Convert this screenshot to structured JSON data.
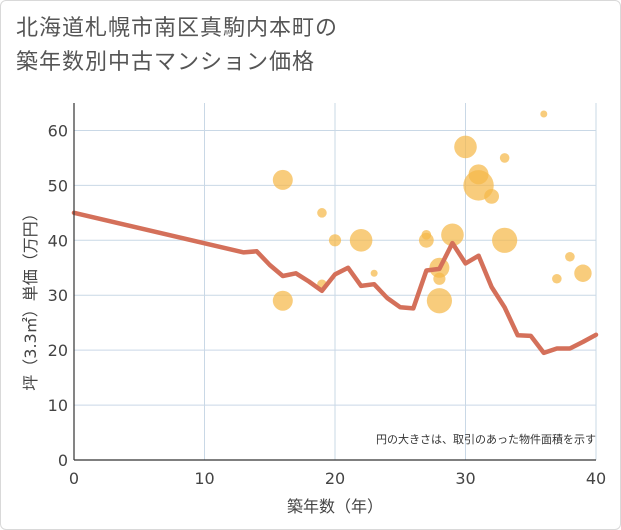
{
  "title_line1": "北海道札幌市南区真駒内本町の",
  "title_line2": "築年数別中古マンション価格",
  "colors": {
    "line": "#d4705a",
    "bubble": "#f5b84a",
    "grid": "#c9d8e6",
    "axis": "#333333"
  },
  "chart_data": {
    "type": "scatter",
    "xlabel": "築年数（年）",
    "ylabel": "坪（3.3㎡）単価（万円）",
    "xlim": [
      0,
      40
    ],
    "ylim": [
      0,
      65
    ],
    "x_ticks": [
      0,
      10,
      20,
      30,
      40
    ],
    "y_ticks": [
      0,
      10,
      20,
      30,
      40,
      50,
      60
    ],
    "grid": true,
    "note": "円の大きさは、取引のあった物件面積を示す",
    "line": {
      "x": [
        0,
        13,
        14,
        15,
        16,
        17,
        18,
        19,
        20,
        21,
        22,
        23,
        24,
        25,
        26,
        27,
        28,
        29,
        30,
        31,
        32,
        33,
        34,
        35,
        36,
        37,
        38,
        39,
        40
      ],
      "y": [
        45,
        37.8,
        38,
        35.5,
        33.5,
        34,
        32.5,
        30.8,
        33.8,
        35,
        31.7,
        32,
        29.5,
        27.8,
        27.6,
        34.5,
        34.8,
        39.5,
        35.8,
        37.2,
        31.5,
        27.8,
        22.7,
        22.6,
        19.5,
        20.3,
        20.3,
        21.5,
        22.8
      ]
    },
    "bubbles": [
      {
        "x": 16,
        "y": 51,
        "size": 3
      },
      {
        "x": 16,
        "y": 29,
        "size": 3
      },
      {
        "x": 19,
        "y": 45,
        "size": 1
      },
      {
        "x": 19,
        "y": 32,
        "size": 1
      },
      {
        "x": 20,
        "y": 40,
        "size": 1.5
      },
      {
        "x": 22,
        "y": 40,
        "size": 3.5
      },
      {
        "x": 23,
        "y": 34,
        "size": 0.5
      },
      {
        "x": 27,
        "y": 40,
        "size": 2
      },
      {
        "x": 27,
        "y": 41,
        "size": 1
      },
      {
        "x": 28,
        "y": 35,
        "size": 3
      },
      {
        "x": 28,
        "y": 33,
        "size": 1.5
      },
      {
        "x": 28,
        "y": 29,
        "size": 4
      },
      {
        "x": 29,
        "y": 41,
        "size": 3.5
      },
      {
        "x": 30,
        "y": 57,
        "size": 3.5
      },
      {
        "x": 31,
        "y": 52,
        "size": 3
      },
      {
        "x": 31,
        "y": 50,
        "size": 5
      },
      {
        "x": 32,
        "y": 48,
        "size": 2
      },
      {
        "x": 33,
        "y": 55,
        "size": 1
      },
      {
        "x": 33,
        "y": 40,
        "size": 4
      },
      {
        "x": 36,
        "y": 63,
        "size": 0.5
      },
      {
        "x": 37,
        "y": 33,
        "size": 1
      },
      {
        "x": 38,
        "y": 37,
        "size": 1
      },
      {
        "x": 39,
        "y": 34,
        "size": 2.5
      }
    ]
  }
}
